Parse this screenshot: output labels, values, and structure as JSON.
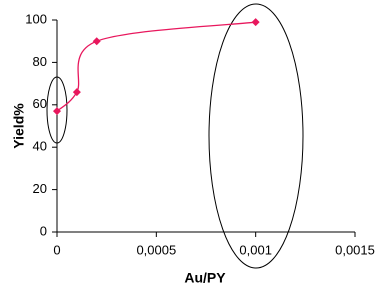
{
  "chart_data": {
    "type": "line",
    "x_label": "Au/PY",
    "y_label": "Yield%",
    "x": [
      0,
      0.0001,
      0.0002,
      0.001
    ],
    "series": [
      {
        "color": "#e8175d",
        "values": [
          57,
          66,
          90,
          99
        ]
      }
    ],
    "xlim": [
      0,
      0.0015
    ],
    "xticks": [
      0,
      {
        "value": 0.0005,
        "label": "0,0005"
      },
      {
        "value": 0.001,
        "label": "0,001"
      },
      {
        "value": 0.0015,
        "label": "0,0015"
      }
    ],
    "ylim": [
      0,
      100
    ],
    "yticks": [
      0,
      20,
      40,
      60,
      80,
      100
    ],
    "grid": false
  }
}
